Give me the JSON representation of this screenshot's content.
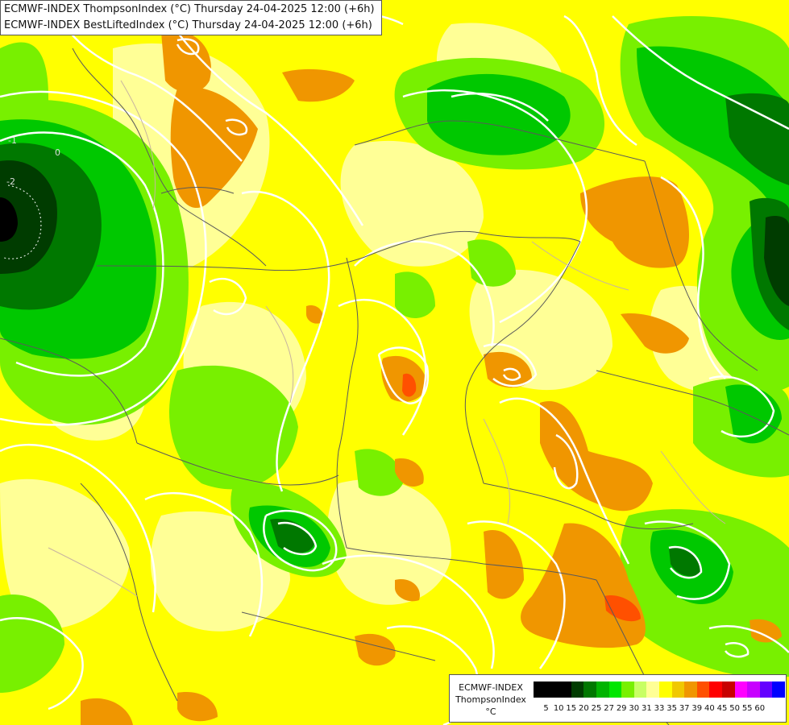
{
  "titles": {
    "line1": "ECMWF-INDEX ThompsonIndex (°C) Thursday 24-04-2025 12:00 (+6h)",
    "line2": "ECMWF-INDEX BestLiftedIndex (°C) Thursday 24-04-2025 12:00 (+6h)"
  },
  "legend": {
    "title_lines": [
      "ECMWF-INDEX",
      "ThompsonIndex",
      "°C"
    ],
    "ticks": [
      "5",
      "10",
      "15",
      "20",
      "25",
      "27",
      "29",
      "30",
      "31",
      "33",
      "35",
      "37",
      "39",
      "40",
      "45",
      "50",
      "55",
      "60"
    ],
    "colors": [
      "#000000",
      "#000000",
      "#000000",
      "#003c00",
      "#007800",
      "#00b400",
      "#00e600",
      "#78f000",
      "#c8ff64",
      "#ffff96",
      "#ffff00",
      "#f0c800",
      "#f09600",
      "#ff5000",
      "#ff0000",
      "#c80000",
      "#ff00ff",
      "#c800ff",
      "#6400ff",
      "#0000ff"
    ]
  },
  "contour_labels": [
    "-1",
    "0",
    "-2"
  ],
  "map_colors": {
    "background": "#ffff00",
    "dark_green": "#003c00",
    "green": "#00b400",
    "light_green": "#78f000",
    "pale_yellow": "#ffff96",
    "orange": "#f09600",
    "light_orange": "#f0c800",
    "red": "#ff5000",
    "contour": "#ffffff",
    "border": "#6b6b6b"
  }
}
